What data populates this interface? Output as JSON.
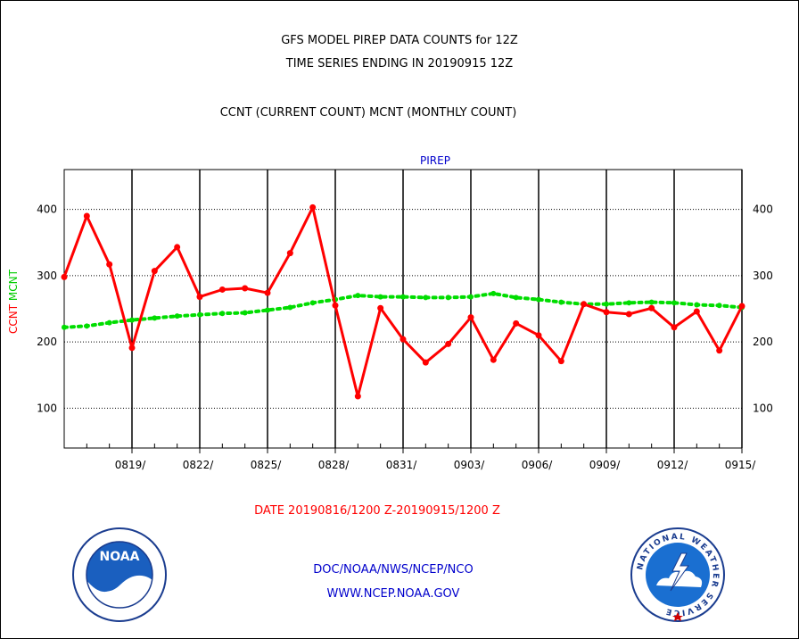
{
  "titles": {
    "line1": "GFS MODEL PIREP DATA COUNTS for 12Z",
    "line2": "TIME SERIES ENDING IN 20190915 12Z",
    "line3": "CCNT (CURRENT COUNT) MCNT (MONTHLY COUNT)"
  },
  "footer": {
    "date_range": "DATE 20190816/1200 Z-20190915/1200 Z",
    "agency": "DOC/NOAA/NWS/NCEP/NCO",
    "website": "WWW.NCEP.NOAA.GOV"
  },
  "logos": {
    "noaa_text": "NOAA",
    "nws_ring_text": "NATIONAL WEATHER SERVICE"
  },
  "colors": {
    "ccnt": "#ff0000",
    "mcnt": "#00dd00",
    "label_blue": "#0000cc"
  },
  "chart_data": {
    "type": "line",
    "title": "PIREP",
    "ylabel_parts": [
      {
        "text": "CCNT",
        "color": "#ff0000"
      },
      {
        "text": "MCNT",
        "color": "#00cc00"
      }
    ],
    "ylim": [
      40,
      460
    ],
    "yticks": [
      100,
      200,
      300,
      400
    ],
    "x": [
      "0816",
      "0817",
      "0818",
      "0819",
      "0820",
      "0821",
      "0822",
      "0823",
      "0824",
      "0825",
      "0826",
      "0827",
      "0828",
      "0829",
      "0830",
      "0831",
      "0901",
      "0902",
      "0903",
      "0904",
      "0905",
      "0906",
      "0907",
      "0908",
      "0909",
      "0910",
      "0911",
      "0912",
      "0913",
      "0914",
      "0915"
    ],
    "xtick_labels": [
      "0819/",
      "0822/",
      "0825/",
      "0828/",
      "0831/",
      "0903/",
      "0906/",
      "0909/",
      "0912/",
      "0915/"
    ],
    "xtick_dates": [
      "0819",
      "0822",
      "0825",
      "0828",
      "0831",
      "0903",
      "0906",
      "0909",
      "0912",
      "0915"
    ],
    "grid": true,
    "series": [
      {
        "name": "CCNT",
        "color": "#ff0000",
        "values": [
          298,
          390,
          317,
          191,
          307,
          343,
          268,
          279,
          281,
          274,
          334,
          403,
          255,
          118,
          251,
          204,
          169,
          197,
          237,
          173,
          228,
          210,
          171,
          257,
          245,
          242,
          251,
          222,
          246,
          187,
          254
        ]
      },
      {
        "name": "MCNT",
        "color": "#00dd00",
        "values": [
          222,
          224,
          229,
          233,
          236,
          239,
          241,
          243,
          244,
          248,
          252,
          259,
          264,
          270,
          268,
          268,
          267,
          267,
          268,
          273,
          267,
          264,
          260,
          257,
          257,
          259,
          260,
          259,
          256,
          255,
          252
        ]
      }
    ]
  }
}
